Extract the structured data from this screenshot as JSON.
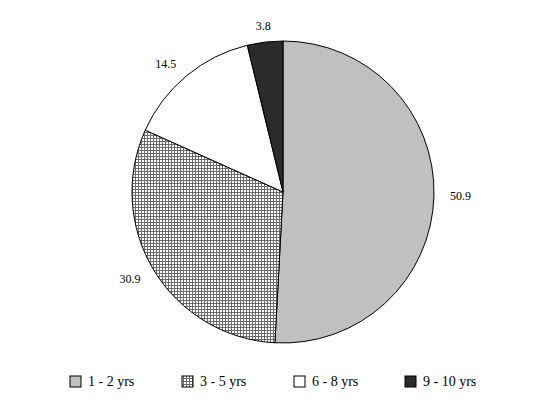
{
  "chart_data": {
    "type": "pie",
    "categories": [
      "1 - 2 yrs",
      "3 - 5 yrs",
      "6 - 8 yrs",
      "9 - 10 yrs"
    ],
    "values": [
      50.9,
      30.9,
      14.5,
      3.8
    ],
    "colors": [
      "#c0c0c0",
      "#6a6a6a",
      "#ffffff",
      "#2b2b2b"
    ],
    "data_labels": true,
    "legend": "bottom"
  }
}
